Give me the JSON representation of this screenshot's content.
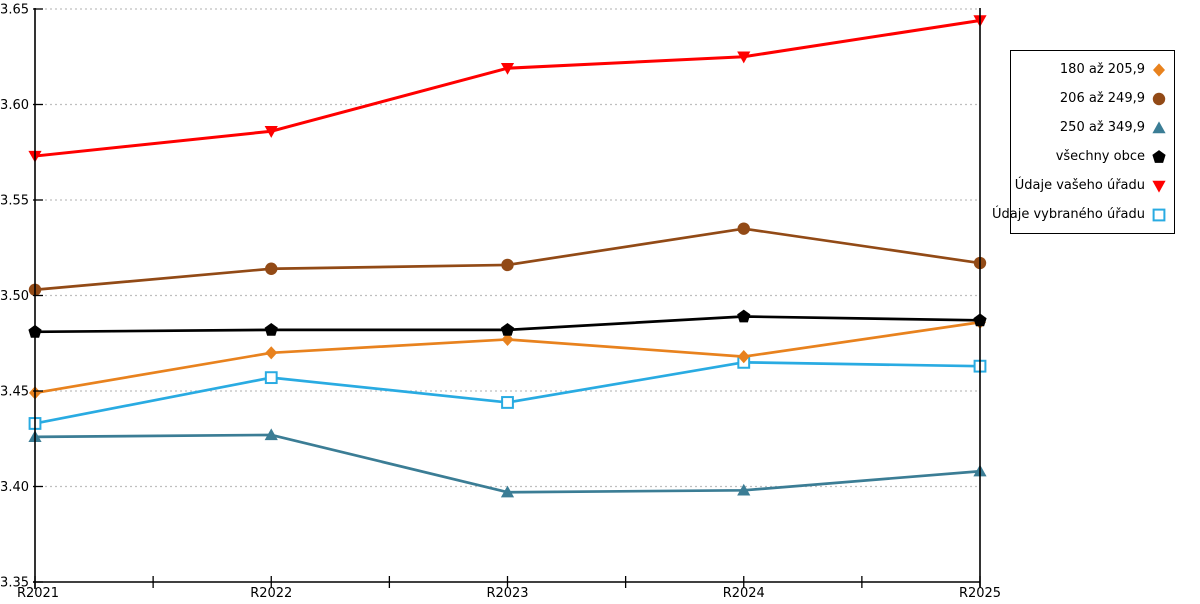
{
  "chart_data": {
    "type": "line",
    "title": "",
    "xlabel": "",
    "ylabel": "",
    "x_categories": [
      "R2021",
      "R2022",
      "R2023",
      "R2024",
      "R2025"
    ],
    "y_tick_labels": [
      "3.65",
      "3.60",
      "3.55",
      "3.50",
      "3.45",
      "3.40",
      "3.35"
    ],
    "ylim": [
      3.35,
      3.65
    ],
    "y_tick_step": 0.05,
    "grid": "horizontal-dashed",
    "grid_color": "#bfbfbf",
    "axis_color": "#000000",
    "background_color": "#ffffff",
    "legend_position": "top-right",
    "x_minor_ticks_between_years": true,
    "series": [
      {
        "name": "180 až 205,9",
        "color": "#E8821E",
        "marker": "diamond",
        "z": 3,
        "values": [
          3.449,
          3.47,
          3.477,
          3.468,
          3.486
        ]
      },
      {
        "name": "206 až 249,9",
        "color": "#924A16",
        "marker": "circle",
        "z": 5,
        "values": [
          3.503,
          3.514,
          3.516,
          3.535,
          3.517
        ]
      },
      {
        "name": "250 až 349,9",
        "color": "#3B7D95",
        "marker": "triangle-up",
        "z": 2,
        "values": [
          3.426,
          3.427,
          3.397,
          3.398,
          3.408
        ]
      },
      {
        "name": "všechny obce",
        "color": "#000000",
        "marker": "pentagon",
        "z": 4,
        "values": [
          3.481,
          3.482,
          3.482,
          3.489,
          3.487
        ]
      },
      {
        "name": "Údaje vašeho úřadu",
        "color": "#FF0000",
        "marker": "triangle-down",
        "z": 6,
        "values": [
          3.573,
          3.586,
          3.619,
          3.625,
          3.644
        ]
      },
      {
        "name": "Údaje vybraného úřadu",
        "color": "#29ABE2",
        "marker": "square-open",
        "z": 1,
        "values": [
          3.433,
          3.457,
          3.444,
          3.465,
          3.463
        ]
      }
    ]
  }
}
